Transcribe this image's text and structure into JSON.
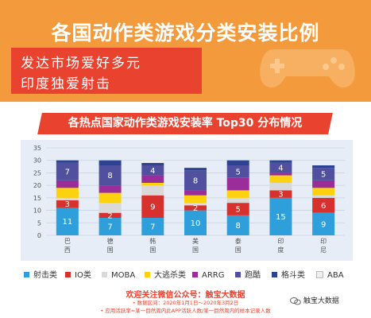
{
  "header": {
    "title": "各国动作类游戏分类安装比例",
    "subtitle_lines": [
      "发达市场爱好多元",
      "印度独爱射击"
    ]
  },
  "chart_title": "各热点国家动作类游戏安装率 Top30 分布情况",
  "chart_data": {
    "type": "bar",
    "stacked": true,
    "categories": [
      "巴西",
      "德国",
      "韩国",
      "美国",
      "泰国",
      "印度",
      "印尼"
    ],
    "ylim": [
      0,
      35
    ],
    "yticks": [
      0,
      5,
      10,
      15,
      20,
      25,
      30,
      35
    ],
    "grid": true,
    "legend_position": "bottom",
    "series": [
      {
        "name": "射击类",
        "color": "#2e9fdb",
        "values": [
          11,
          7,
          7,
          10,
          8,
          15,
          9
        ]
      },
      {
        "name": "IO类",
        "color": "#d7312e",
        "values": [
          3,
          2,
          9,
          2,
          5,
          3,
          6
        ]
      },
      {
        "name": "MOBA",
        "color": "#d9d9d9",
        "values": [
          1,
          4,
          4,
          1,
          2,
          3,
          1
        ]
      },
      {
        "name": "大逃杀类",
        "color": "#fbd20d",
        "values": [
          4,
          4,
          1,
          3,
          3,
          3,
          3
        ]
      },
      {
        "name": "ARRG",
        "color": "#9b2d9b",
        "values": [
          3,
          3,
          3,
          2,
          5,
          1,
          3
        ]
      },
      {
        "name": "跑酷",
        "color": "#50509e",
        "values": [
          7,
          8,
          4,
          8,
          5,
          4,
          5
        ]
      },
      {
        "name": "格斗类",
        "color": "#2b4390",
        "values": [
          1,
          2,
          1,
          1,
          2,
          1,
          1
        ]
      },
      {
        "name": "ABA",
        "color": "#eeeeee",
        "values": [
          0,
          0,
          1,
          0,
          0,
          0,
          0
        ]
      }
    ],
    "data_labels": [
      {
        "category": "巴西",
        "series": "射击类",
        "label": "11"
      },
      {
        "category": "巴西",
        "series": "IO类",
        "label": "3"
      },
      {
        "category": "巴西",
        "series": "跑酷",
        "label": "7"
      },
      {
        "category": "德国",
        "series": "射击类",
        "label": "7"
      },
      {
        "category": "德国",
        "series": "IO类",
        "label": "2"
      },
      {
        "category": "德国",
        "series": "跑酷",
        "label": "8"
      },
      {
        "category": "韩国",
        "series": "射击类",
        "label": "7"
      },
      {
        "category": "韩国",
        "series": "IO类",
        "label": "9"
      },
      {
        "category": "韩国",
        "series": "跑酷",
        "label": "4"
      },
      {
        "category": "美国",
        "series": "射击类",
        "label": "10"
      },
      {
        "category": "美国",
        "series": "IO类",
        "label": "2"
      },
      {
        "category": "美国",
        "series": "跑酷",
        "label": "8"
      },
      {
        "category": "泰国",
        "series": "射击类",
        "label": "8"
      },
      {
        "category": "泰国",
        "series": "IO类",
        "label": "5"
      },
      {
        "category": "泰国",
        "series": "跑酷",
        "label": "5"
      },
      {
        "category": "印度",
        "series": "射击类",
        "label": "15"
      },
      {
        "category": "印度",
        "series": "IO类",
        "label": "3"
      },
      {
        "category": "印度",
        "series": "跑酷",
        "label": "4"
      },
      {
        "category": "印尼",
        "series": "射击类",
        "label": "9"
      },
      {
        "category": "印尼",
        "series": "IO类",
        "label": "6"
      },
      {
        "category": "印尼",
        "series": "跑酷",
        "label": "5"
      }
    ]
  },
  "footer": {
    "line1": "欢迎关注微信公众号：触宝大数据",
    "line2": "• 数据区间：2020年1月1日～2020年3月2日",
    "line3": "• 应用活跃率=某一目然周内此APP活跃人数/某一目然周内的样本记录人数",
    "brand": "触宝大数据"
  },
  "colors": {
    "hero_bg": "#f29a3c",
    "accent_red": "#e9432f",
    "chart_bg": "#e6edf7"
  }
}
